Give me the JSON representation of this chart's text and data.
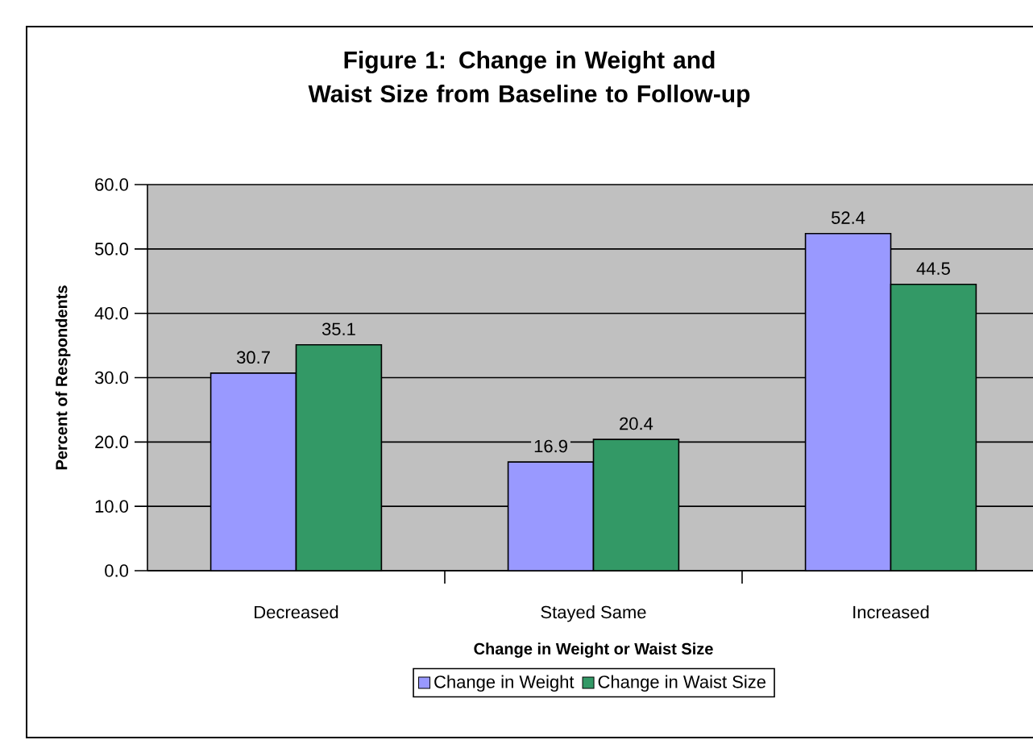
{
  "chart_data": {
    "type": "bar",
    "title": "Figure 1:  Change in Weight and Waist Size from Baseline to Follow-up",
    "xlabel": "Change in Weight or Waist Size",
    "ylabel": "Percent of Respondents",
    "categories": [
      "Decreased",
      "Stayed Same",
      "Increased"
    ],
    "series": [
      {
        "name": "Change in Weight",
        "color": "#9999ff",
        "values": [
          30.7,
          16.9,
          52.4
        ]
      },
      {
        "name": "Change in Waist Size",
        "color": "#339966",
        "values": [
          35.1,
          20.4,
          44.5
        ]
      }
    ],
    "ylim": [
      0,
      60
    ],
    "yticks": [
      {
        "value": 0,
        "label": "0.0"
      },
      {
        "value": 10,
        "label": "10.0"
      },
      {
        "value": 20,
        "label": "20.0"
      },
      {
        "value": 30,
        "label": "30.0"
      },
      {
        "value": 40,
        "label": "40.0"
      },
      {
        "value": 50,
        "label": "50.0"
      },
      {
        "value": 60,
        "label": "60.0"
      }
    ],
    "grid": "y",
    "legend": "bottom",
    "data_labels": true
  }
}
